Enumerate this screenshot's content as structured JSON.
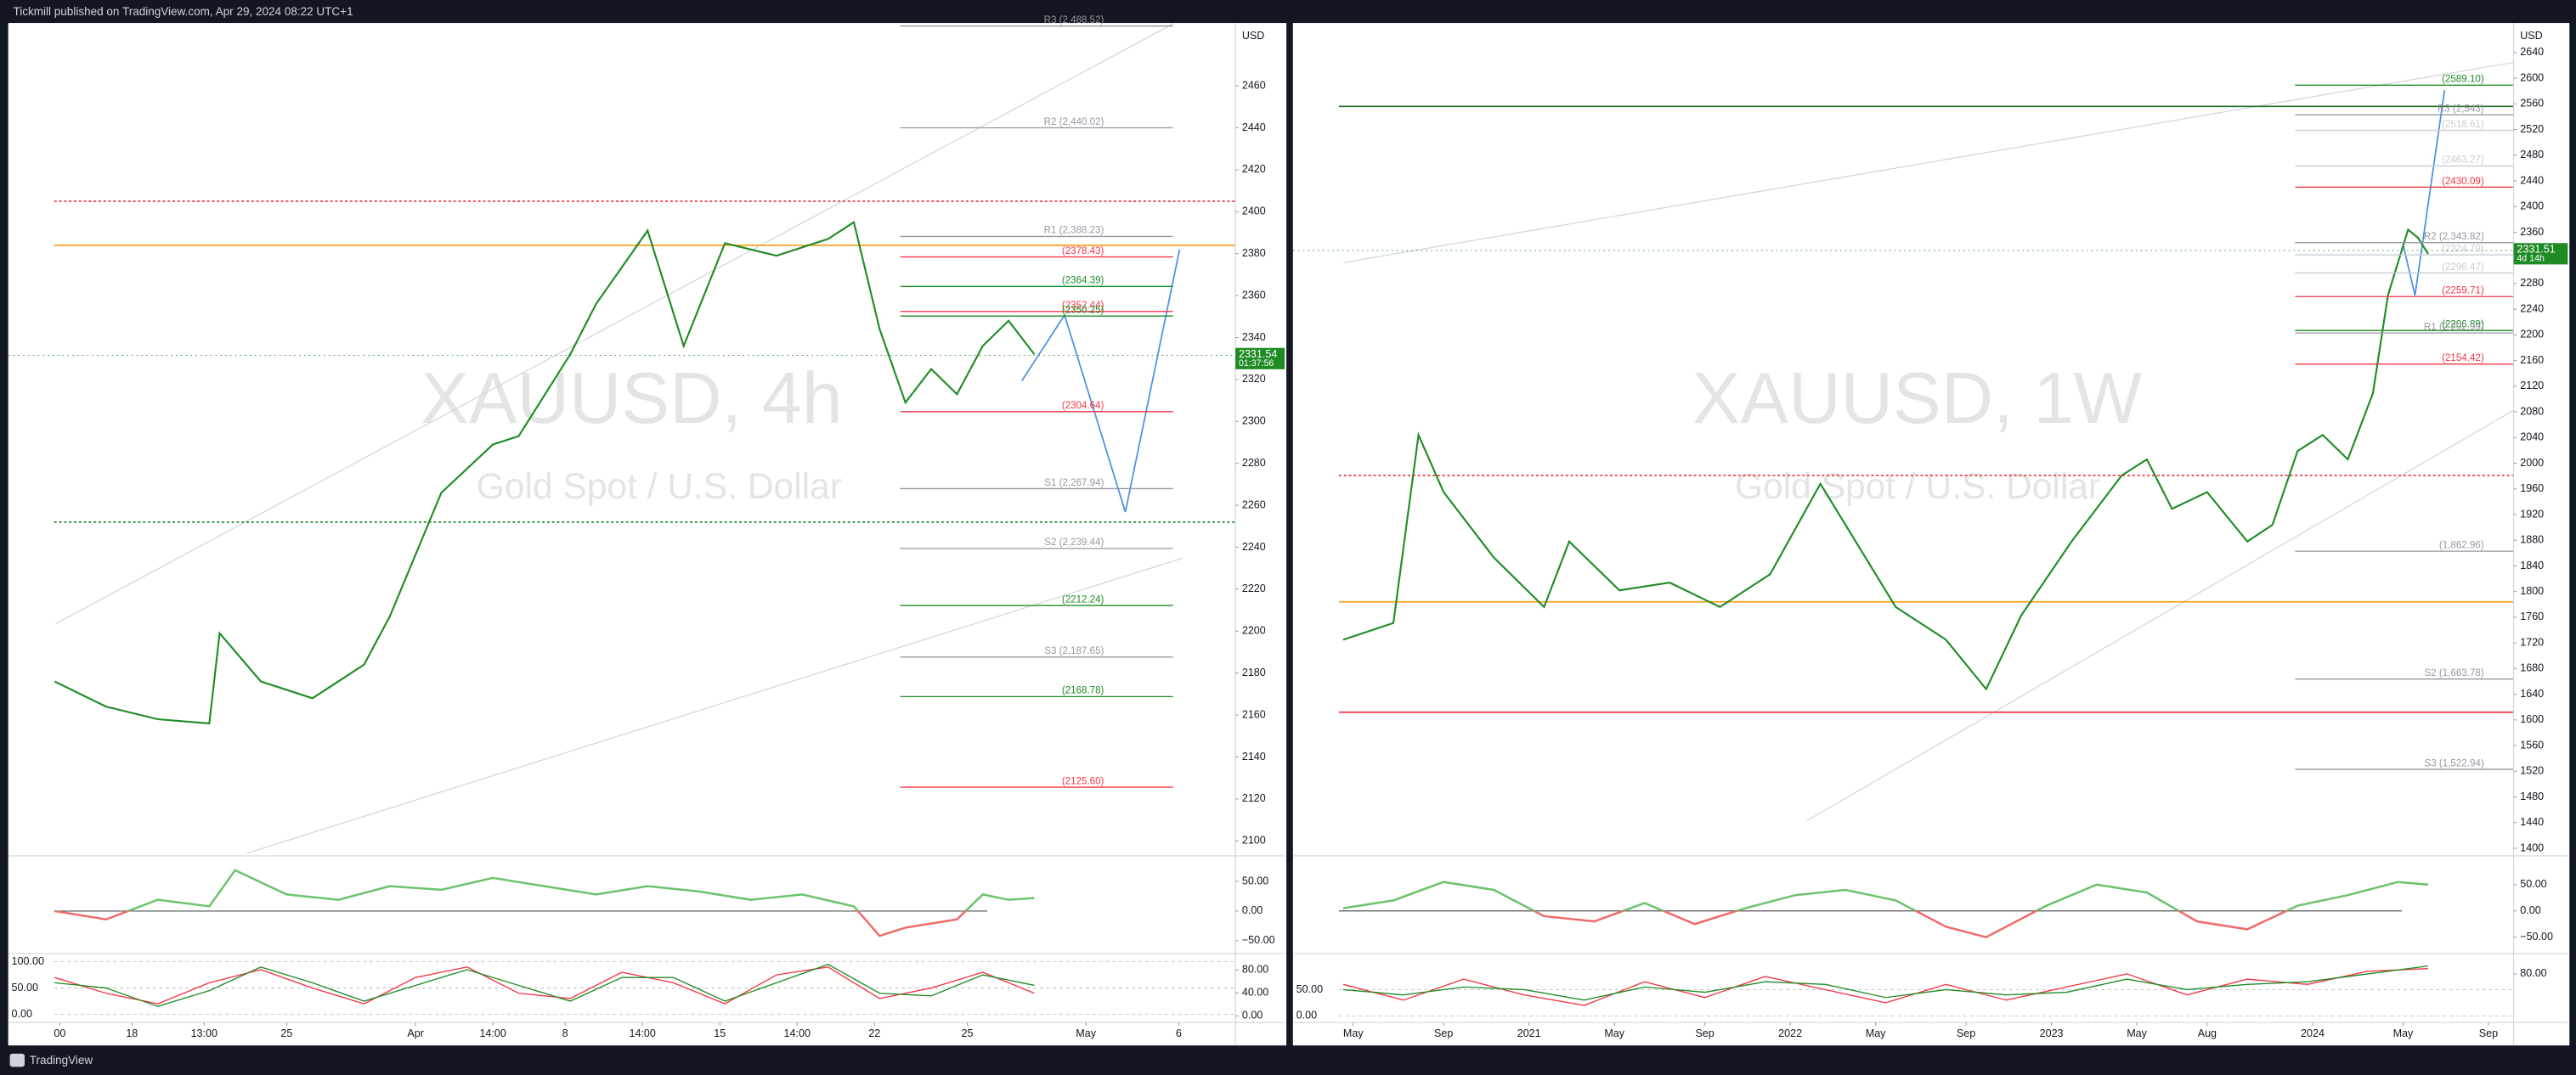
{
  "header": "Tickmill published on TradingView.com, Apr 29, 2024 08:22 UTC+1",
  "footer": "TradingView",
  "chart_data": [
    {
      "type": "line",
      "symbol": "XAUUSD, 4h",
      "description": "Gold Spot / U.S. Dollar",
      "currency": "USD",
      "x": [
        0,
        10,
        20,
        30,
        32,
        40,
        50,
        60,
        65,
        75,
        85,
        90,
        100,
        105,
        115,
        122,
        130,
        140,
        150,
        155,
        160,
        165,
        170,
        175,
        180,
        185,
        190
      ],
      "series": [
        {
          "color": "#1f8b24",
          "values": [
            2176,
            2164,
            2158,
            2156,
            2199,
            2176,
            2168,
            2184,
            2207,
            2266,
            2289,
            2293,
            2332,
            2356,
            2391,
            2336,
            2385,
            2379,
            2387,
            2395,
            2344,
            2309,
            2325,
            2313,
            2336,
            2348,
            2332
          ]
        }
      ],
      "xlim": [
        -9,
        229
      ],
      "xticks": [
        {
          "value": 1,
          "label": "00"
        },
        {
          "value": 15,
          "label": "18"
        },
        {
          "value": 29,
          "label": "13:00"
        },
        {
          "value": 45,
          "label": "25"
        },
        {
          "value": 70,
          "label": "Apr"
        },
        {
          "value": 85,
          "label": "14:00"
        },
        {
          "value": 99,
          "label": "8"
        },
        {
          "value": 114,
          "label": "14:00"
        },
        {
          "value": 129,
          "label": "15"
        },
        {
          "value": 144,
          "label": "14:00"
        },
        {
          "value": 159,
          "label": "22"
        },
        {
          "value": 177,
          "label": "25"
        },
        {
          "value": 200,
          "label": "May"
        },
        {
          "value": 218,
          "label": "6"
        }
      ],
      "ylim": [
        2094,
        2490
      ],
      "yticks": [
        2100,
        2120,
        2140,
        2160,
        2180,
        2200,
        2220,
        2240,
        2260,
        2280,
        2300,
        2320,
        2340,
        2360,
        2380,
        2400,
        2420,
        2440,
        2460
      ],
      "last_price": 2331.54,
      "countdown": "01:37:56",
      "last_price_color": "#1f8b24",
      "levels": [
        {
          "value": 2488.52,
          "label": "R3 (2,488.52)",
          "color": "#9598a1"
        },
        {
          "value": 2440.02,
          "label": "R2 (2,440.02)",
          "color": "#9598a1"
        },
        {
          "value": 2388.23,
          "label": "R1 (2,388.23)",
          "color": "#9598a1"
        },
        {
          "value": 2378.43,
          "label": "(2378.43)",
          "color": "#f23645"
        },
        {
          "value": 2364.39,
          "label": "(2364.39)",
          "color": "#1f8b24"
        },
        {
          "value": 2352.44,
          "label": "(2352.44)",
          "color": "#f23645"
        },
        {
          "value": 2350.25,
          "label": "(2350.25)",
          "color": "#1f8b24"
        },
        {
          "value": 2304.64,
          "label": "(2304.64)",
          "color": "#f23645"
        },
        {
          "value": 2267.94,
          "label": "S1 (2,267.94)",
          "color": "#9598a1"
        },
        {
          "value": 2239.44,
          "label": "S2 (2,239.44)",
          "color": "#9598a1"
        },
        {
          "value": 2212.24,
          "label": "(2212.24)",
          "color": "#1f8b24"
        },
        {
          "value": 2187.65,
          "label": "S3 (2,187.65)",
          "color": "#9598a1"
        },
        {
          "value": 2168.78,
          "label": "(2168.78)",
          "color": "#1f8b24"
        },
        {
          "value": 2125.6,
          "label": "(2125.60)",
          "color": "#f23645"
        }
      ],
      "key_lines": [
        {
          "value": 2384,
          "color": "#f7a21b",
          "style": "solid"
        },
        {
          "value": 2405,
          "color": "#f23645",
          "style": "dotted"
        },
        {
          "value": 2252,
          "color": "#1f8b24",
          "style": "dotted"
        }
      ],
      "oscillator": {
        "x": [
          0,
          10,
          20,
          30,
          35,
          45,
          55,
          65,
          75,
          85,
          95,
          105,
          115,
          125,
          135,
          145,
          155,
          160,
          165,
          175,
          180,
          185,
          190
        ],
        "values": [
          0,
          -14,
          19,
          8,
          69,
          28,
          19,
          42,
          36,
          56,
          42,
          28,
          42,
          33,
          19,
          28,
          8,
          -42,
          -28,
          -14,
          28,
          19,
          22
        ],
        "color_up": "#6cc36c",
        "color_down": "#ef6b6b",
        "ylim": [
          -69,
          89
        ],
        "yticks": [
          {
            "value": 50,
            "label": "50.00"
          },
          {
            "value": 0,
            "label": "0.00"
          },
          {
            "value": -50,
            "label": "−50.00"
          }
        ]
      },
      "stochastic": {
        "x": [
          0,
          10,
          20,
          30,
          40,
          50,
          60,
          70,
          80,
          90,
          100,
          110,
          120,
          130,
          140,
          150,
          160,
          170,
          180,
          190
        ],
        "series": [
          {
            "color": "#f23645",
            "values": [
              70,
              40,
              20,
              60,
              85,
              50,
              20,
              70,
              90,
              40,
              30,
              80,
              60,
              20,
              75,
              90,
              30,
              50,
              80,
              40
            ]
          },
          {
            "color": "#1f8b24",
            "values": [
              60,
              50,
              15,
              45,
              90,
              60,
              25,
              55,
              85,
              55,
              25,
              70,
              70,
              25,
              60,
              95,
              40,
              35,
              75,
              55
            ]
          }
        ],
        "ylim": [
          -12.5,
          112.5
        ],
        "yticks": [
          {
            "value": 100,
            "label": "100.00"
          },
          {
            "value": 50,
            "label": "50.00"
          },
          {
            "value": 0,
            "label": "0.00"
          }
        ],
        "y2lim": [
          -8.6,
          105.7
        ],
        "y2ticks": [
          {
            "value": 80,
            "label": "80.00"
          },
          {
            "value": 40,
            "label": "40.00"
          },
          {
            "value": 0,
            "label": "0.00"
          }
        ]
      }
    },
    {
      "type": "line",
      "symbol": "XAUUSD, 1W",
      "description": "Gold Spot / U.S. Dollar",
      "currency": "USD",
      "x": [
        0,
        10,
        15,
        20,
        30,
        40,
        45,
        55,
        65,
        75,
        85,
        95,
        100,
        110,
        120,
        128,
        135,
        145,
        155,
        160,
        165,
        172,
        180,
        185,
        190,
        195,
        200,
        205,
        208,
        212,
        214,
        216
      ],
      "series": [
        {
          "color": "#1f8b24",
          "values": [
            1725,
            1751,
            2044,
            1955,
            1853,
            1776,
            1878,
            1802,
            1814,
            1776,
            1827,
            1968,
            1904,
            1776,
            1725,
            1648,
            1763,
            1878,
            1981,
            2006,
            1929,
            1955,
            1878,
            1904,
            2019,
            2044,
            2006,
            2109,
            2262,
            2364,
            2351,
            2326
          ]
        }
      ],
      "xlim": [
        -10,
        233
      ],
      "xticks": [
        {
          "value": 2,
          "label": "May"
        },
        {
          "value": 20,
          "label": "Sep"
        },
        {
          "value": 37,
          "label": "2021"
        },
        {
          "value": 54,
          "label": "May"
        },
        {
          "value": 72,
          "label": "Sep"
        },
        {
          "value": 89,
          "label": "2022"
        },
        {
          "value": 106,
          "label": "May"
        },
        {
          "value": 124,
          "label": "Sep"
        },
        {
          "value": 141,
          "label": "2023"
        },
        {
          "value": 158,
          "label": "May"
        },
        {
          "value": 172,
          "label": "Aug"
        },
        {
          "value": 193,
          "label": "2024"
        },
        {
          "value": 211,
          "label": "May"
        },
        {
          "value": 228,
          "label": "Sep"
        }
      ],
      "ylim": [
        1392,
        2686
      ],
      "yticks": [
        1400,
        1440,
        1480,
        1520,
        1560,
        1600,
        1640,
        1680,
        1720,
        1760,
        1800,
        1840,
        1880,
        1920,
        1960,
        2000,
        2040,
        2080,
        2120,
        2160,
        2200,
        2240,
        2280,
        2320,
        2360,
        2400,
        2440,
        2480,
        2520,
        2560,
        2600,
        2640
      ],
      "last_price": 2331.51,
      "countdown": "4d 14h",
      "last_price_color": "#1f8b24",
      "levels": [
        {
          "value": 2589.1,
          "label": "(2589.10)",
          "color": "#1f8b24"
        },
        {
          "value": 2543,
          "label": "R3 (2,543)",
          "color": "#9598a1"
        },
        {
          "value": 2518.61,
          "label": "(2518.61)",
          "color": "#c9ccd3"
        },
        {
          "value": 2463.27,
          "label": "(2463.27)",
          "color": "#c9ccd3"
        },
        {
          "value": 2430.09,
          "label": "(2430.09)",
          "color": "#f23645"
        },
        {
          "value": 2343.82,
          "label": "R2 (2,343.82)",
          "color": "#9598a1"
        },
        {
          "value": 2324.79,
          "label": "(2324.79)",
          "color": "#c9ccd3"
        },
        {
          "value": 2296.47,
          "label": "(2296.47)",
          "color": "#c9ccd3"
        },
        {
          "value": 2259.71,
          "label": "(2259.71)",
          "color": "#f23645"
        },
        {
          "value": 2206.89,
          "label": "(2206.89)",
          "color": "#1f8b24"
        },
        {
          "value": 2202.99,
          "label": "R1 (2,202.99)",
          "color": "#9598a1"
        },
        {
          "value": 2154.42,
          "label": "(2154.42)",
          "color": "#f23645"
        },
        {
          "value": 1862.96,
          "label": "(1,862.96)",
          "color": "#9598a1"
        },
        {
          "value": 1663.78,
          "label": "S2 (1,663.78)",
          "color": "#9598a1"
        },
        {
          "value": 1522.94,
          "label": "S3 (1,522.94)",
          "color": "#9598a1"
        }
      ],
      "key_lines": [
        {
          "value": 1784,
          "color": "#f7a21b",
          "style": "solid"
        },
        {
          "value": 1981,
          "color": "#f23645",
          "style": "dotted"
        },
        {
          "value": 2556,
          "color": "#1f6b24",
          "style": "solid"
        },
        {
          "value": 1612,
          "color": "#f23645",
          "style": "solid"
        }
      ],
      "oscillator": {
        "x": [
          0,
          10,
          20,
          30,
          40,
          50,
          60,
          70,
          80,
          90,
          100,
          110,
          120,
          128,
          140,
          150,
          160,
          170,
          180,
          190,
          200,
          210,
          216
        ],
        "values": [
          5,
          20,
          55,
          40,
          -10,
          -20,
          15,
          -25,
          5,
          30,
          40,
          20,
          -30,
          -50,
          10,
          50,
          35,
          -20,
          -35,
          10,
          30,
          55,
          50
        ],
        "color_up": "#6cc36c",
        "color_down": "#ef6b6b",
        "ylim": [
          -78,
          100
        ],
        "yticks": [
          {
            "value": 50,
            "label": "50.00"
          },
          {
            "value": 0,
            "label": "0.00"
          },
          {
            "value": -50,
            "label": "−50.00"
          }
        ]
      },
      "stochastic": {
        "x": [
          0,
          12,
          24,
          36,
          48,
          60,
          72,
          84,
          96,
          108,
          120,
          132,
          144,
          156,
          168,
          180,
          192,
          204,
          216
        ],
        "series": [
          {
            "color": "#f23645",
            "values": [
              60,
              30,
              70,
              40,
              20,
              65,
              35,
              75,
              50,
              25,
              60,
              30,
              55,
              80,
              40,
              70,
              60,
              85,
              90
            ]
          },
          {
            "color": "#1f8b24",
            "values": [
              50,
              40,
              55,
              50,
              30,
              55,
              45,
              65,
              60,
              35,
              50,
              40,
              45,
              70,
              50,
              60,
              65,
              80,
              95
            ]
          }
        ],
        "ylim": [
          -9.4,
          115.6
        ],
        "yticks": [
          {
            "value": 50,
            "label": "50.00"
          },
          {
            "value": 0,
            "label": "0.00"
          }
        ],
        "y2lim": [
          -9.4,
          115.6
        ],
        "y2ticks": [
          {
            "value": 80,
            "label": "80.00"
          }
        ]
      }
    }
  ]
}
